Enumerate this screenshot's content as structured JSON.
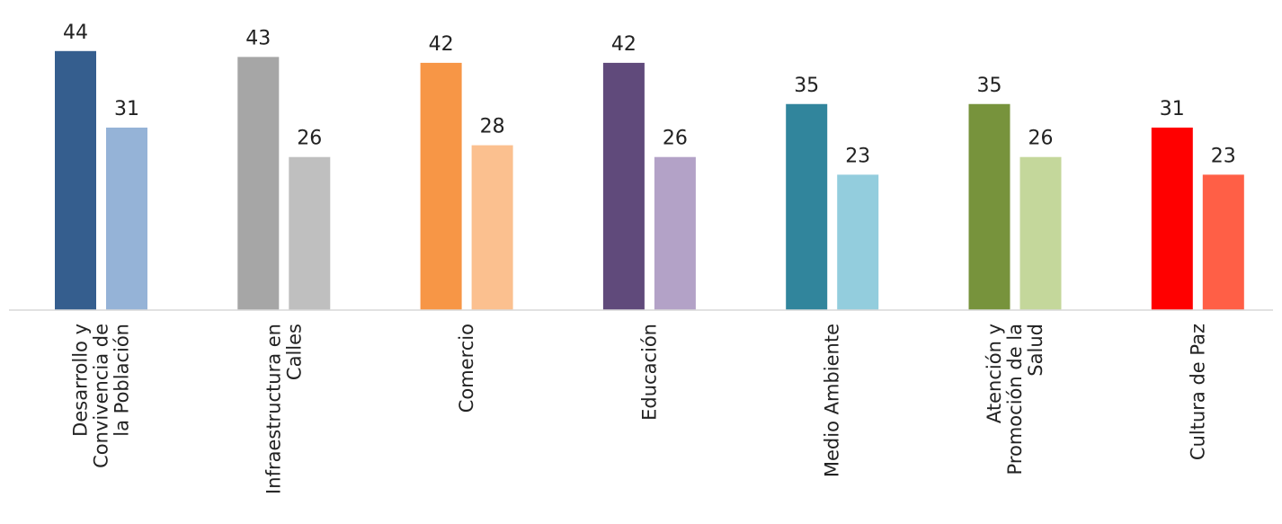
{
  "chart_data": {
    "type": "bar",
    "categories": [
      [
        "Desarrollo y",
        "Convivencia de",
        "la Población"
      ],
      [
        "Infraestructura en",
        "Calles"
      ],
      [
        "Comercio"
      ],
      [
        "Educación"
      ],
      [
        "Medio Ambiente"
      ],
      [
        "Atención y",
        "Promoción de la",
        "Salud"
      ],
      [
        "Cultura de Paz"
      ]
    ],
    "series": [
      {
        "values": [
          44,
          43,
          42,
          42,
          35,
          35,
          31
        ]
      },
      {
        "values": [
          31,
          26,
          28,
          26,
          23,
          26,
          23
        ]
      }
    ],
    "colors": [
      [
        "#355E8E",
        "#95B3D7"
      ],
      [
        "#A6A6A6",
        "#BFBFBF"
      ],
      [
        "#F79646",
        "#FBC08F"
      ],
      [
        "#604A7B",
        "#B3A2C7"
      ],
      [
        "#31859C",
        "#93CDDD"
      ],
      [
        "#77933C",
        "#C4D79B"
      ],
      [
        "#FF0000",
        "#FF5F46"
      ]
    ],
    "ylim": [
      0,
      46
    ],
    "grid": false,
    "legend": "none"
  }
}
